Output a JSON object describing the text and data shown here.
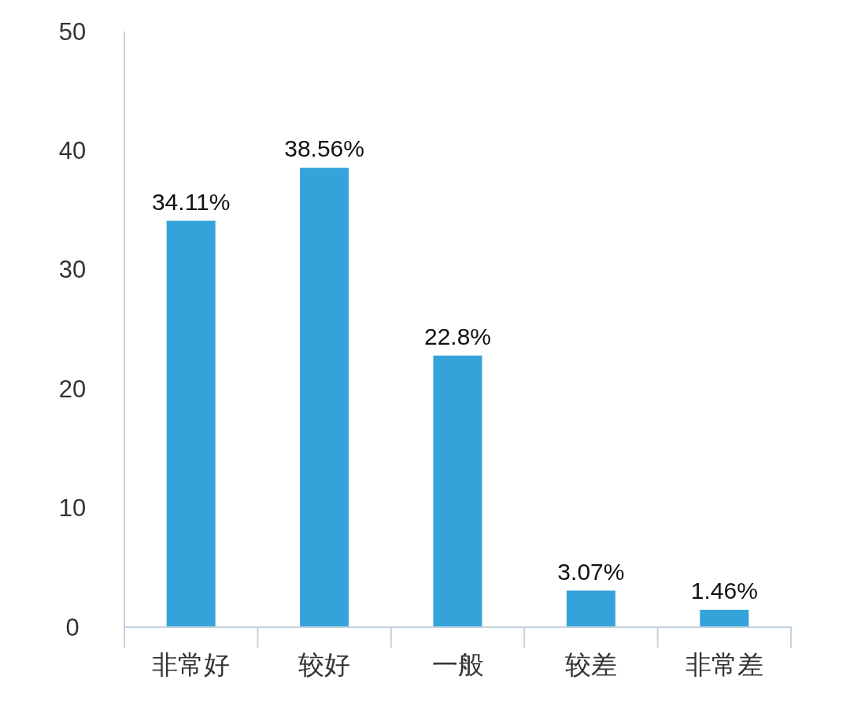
{
  "chart_data": {
    "type": "bar",
    "categories": [
      "非常好",
      "较好",
      "一般",
      "较差",
      "非常差"
    ],
    "values": [
      34.11,
      38.56,
      22.8,
      3.07,
      1.46
    ],
    "value_labels": [
      "34.11%",
      "38.56%",
      "22.8%",
      "3.07%",
      "1.46%"
    ],
    "color": "#35a3d9",
    "ylim": [
      0,
      50
    ],
    "yticks": [
      0,
      10,
      20,
      30,
      40,
      50
    ],
    "grid": false
  }
}
